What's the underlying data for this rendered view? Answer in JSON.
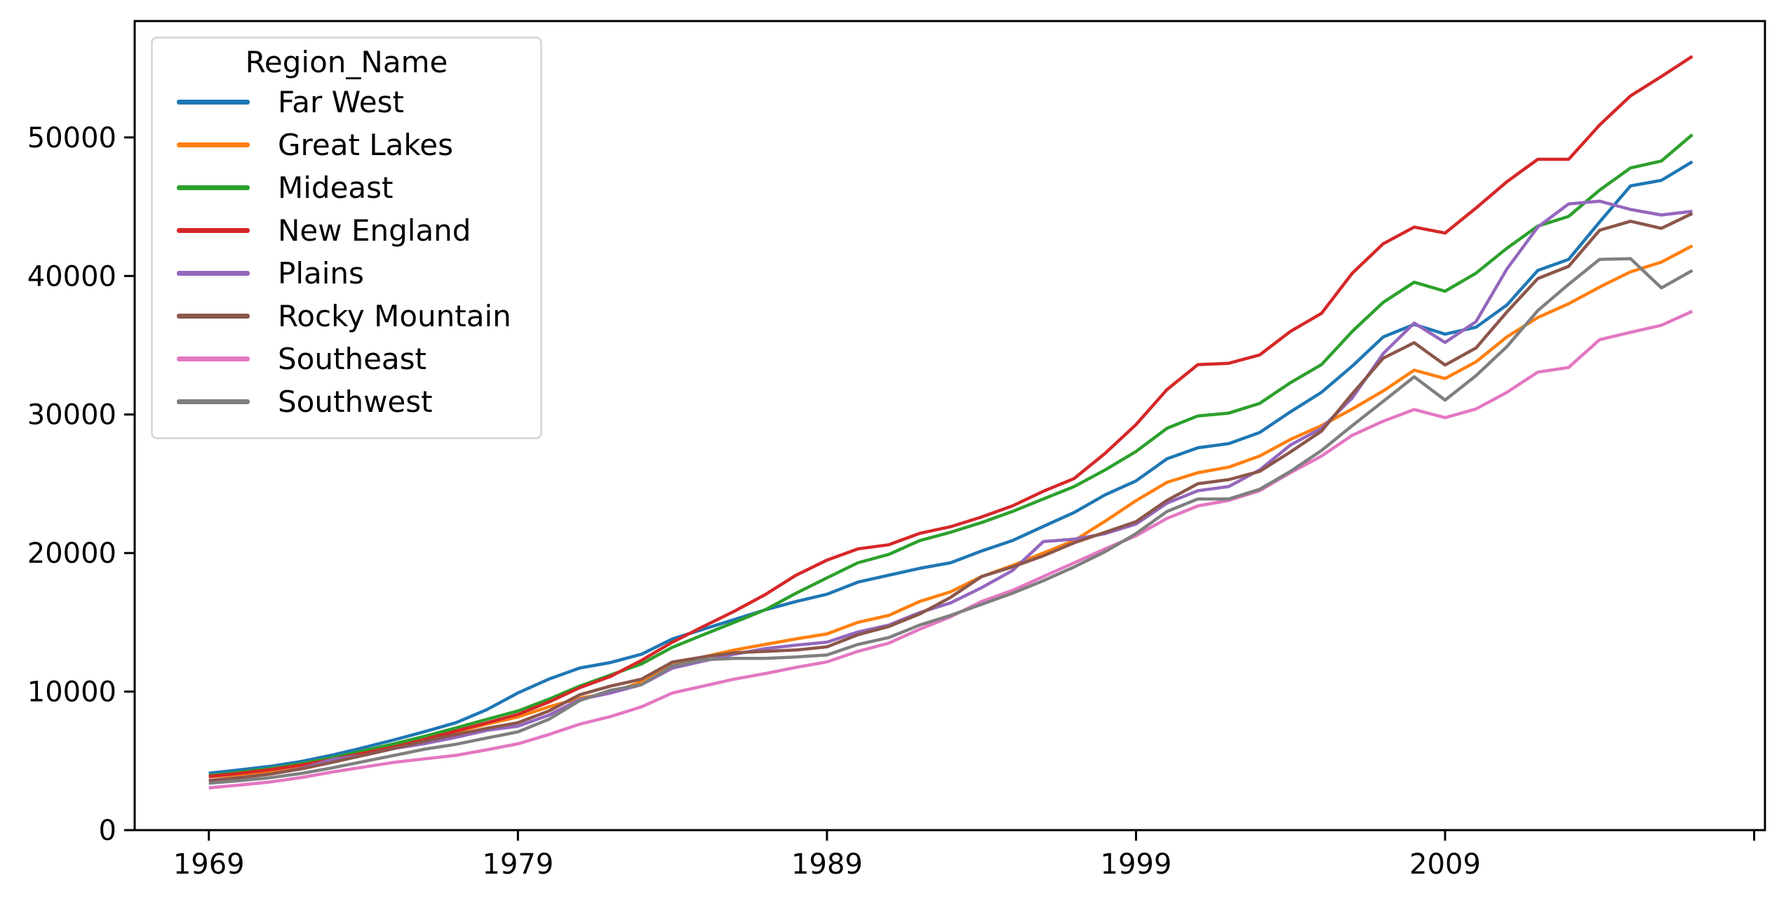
{
  "chart_data": {
    "type": "line",
    "title": "",
    "xlabel": "",
    "ylabel": "",
    "grid": false,
    "legend_position": "upper left",
    "legend_title": "Region_Name",
    "xlim": [
      1966.6,
      2019.35
    ],
    "ylim": [
      0,
      58400
    ],
    "x_ticks": [
      1969,
      1979,
      1989,
      1999,
      2009
    ],
    "x_tick_labels": [
      "1969",
      "1979",
      "1989",
      "1999",
      "2009"
    ],
    "x_extra_unlabeled_tick": 2019,
    "y_ticks": [
      0,
      10000,
      20000,
      30000,
      40000,
      50000
    ],
    "y_tick_labels": [
      "0",
      "10000",
      "20000",
      "30000",
      "40000",
      "50000"
    ],
    "x": [
      1969,
      1970,
      1971,
      1972,
      1973,
      1974,
      1975,
      1976,
      1977,
      1978,
      1979,
      1980,
      1981,
      1982,
      1983,
      1984,
      1985,
      1986,
      1987,
      1988,
      1989,
      1990,
      1991,
      1992,
      1993,
      1994,
      1995,
      1996,
      1997,
      1998,
      1999,
      2000,
      2001,
      2002,
      2003,
      2004,
      2005,
      2006,
      2007,
      2008,
      2009,
      2010,
      2011,
      2012,
      2013,
      2014,
      2015,
      2016,
      2017
    ],
    "series": [
      {
        "name": "Far West",
        "color": "#1f77b4",
        "values": [
          4110,
          4350,
          4610,
          4960,
          5420,
          5950,
          6520,
          7120,
          7760,
          8700,
          9900,
          10900,
          11700,
          12100,
          12700,
          13800,
          14500,
          15200,
          15900,
          16500,
          17030,
          17900,
          18400,
          18900,
          19300,
          20150,
          20900,
          21920,
          22930,
          24200,
          25210,
          26800,
          27600,
          27900,
          28700,
          30200,
          31600,
          33500,
          35600,
          36500,
          35800,
          36300,
          37900,
          40400,
          41200,
          43900,
          46500,
          46900,
          48250
        ]
      },
      {
        "name": "Great Lakes",
        "color": "#ff7f0e",
        "values": [
          3850,
          4000,
          4280,
          4650,
          5180,
          5650,
          6080,
          6680,
          7100,
          7650,
          8170,
          8900,
          9520,
          9900,
          10700,
          11900,
          12500,
          13000,
          13400,
          13800,
          14160,
          15000,
          15500,
          16500,
          17200,
          18300,
          19100,
          20000,
          20900,
          22300,
          23780,
          25100,
          25800,
          26200,
          27000,
          28200,
          29200,
          30400,
          31700,
          33200,
          32600,
          33800,
          35600,
          37000,
          38000,
          39200,
          40300,
          41000,
          42180
        ]
      },
      {
        "name": "Mideast",
        "color": "#2ca02c",
        "values": [
          3940,
          4180,
          4450,
          4800,
          5230,
          5720,
          6230,
          6780,
          7380,
          8000,
          8600,
          9450,
          10400,
          11200,
          12000,
          13200,
          14100,
          15000,
          15900,
          17100,
          18210,
          19300,
          19900,
          20900,
          21500,
          22200,
          23000,
          23900,
          24800,
          26000,
          27330,
          29000,
          29900,
          30100,
          30800,
          32300,
          33600,
          36000,
          38100,
          39550,
          38900,
          40200,
          42000,
          43600,
          44300,
          46200,
          47800,
          48300,
          50200
        ]
      },
      {
        "name": "New England",
        "color": "#d62728",
        "values": [
          3880,
          4100,
          4370,
          4700,
          5100,
          5550,
          6000,
          6550,
          7150,
          7750,
          8350,
          9250,
          10280,
          11100,
          12250,
          13570,
          14700,
          15800,
          17000,
          18400,
          19490,
          20300,
          20600,
          21420,
          21900,
          22600,
          23400,
          24460,
          25380,
          27200,
          29270,
          31800,
          33600,
          33700,
          34300,
          36000,
          37300,
          40200,
          42330,
          43530,
          43100,
          44900,
          46800,
          48420,
          48420,
          50900,
          53000,
          54400,
          55850
        ]
      },
      {
        "name": "Plains",
        "color": "#9467bd",
        "values": [
          3590,
          3790,
          4050,
          4450,
          5100,
          5400,
          5900,
          6250,
          6700,
          7200,
          7500,
          8300,
          9430,
          9900,
          10500,
          11700,
          12200,
          12700,
          13100,
          13350,
          13570,
          14300,
          14800,
          15700,
          16400,
          17500,
          18730,
          20830,
          21000,
          21400,
          22090,
          23600,
          24500,
          24800,
          26000,
          27800,
          29000,
          31200,
          34400,
          36600,
          35200,
          36700,
          40500,
          43530,
          45200,
          45400,
          44800,
          44400,
          44670
        ]
      },
      {
        "name": "Rocky Mountain",
        "color": "#8c564b",
        "values": [
          3560,
          3790,
          4050,
          4420,
          4900,
          5400,
          5900,
          6420,
          6900,
          7350,
          7750,
          8600,
          9770,
          10400,
          10900,
          12130,
          12500,
          12800,
          12900,
          13000,
          13230,
          14100,
          14700,
          15600,
          16800,
          18300,
          19000,
          19800,
          20740,
          21500,
          22260,
          23800,
          25000,
          25300,
          25900,
          27300,
          28800,
          31500,
          34070,
          35180,
          33570,
          34800,
          37400,
          39810,
          40700,
          43300,
          43950,
          43440,
          44510
        ]
      },
      {
        "name": "Southeast",
        "color": "#e377c2",
        "values": [
          3050,
          3250,
          3480,
          3800,
          4200,
          4550,
          4900,
          5150,
          5400,
          5800,
          6230,
          6900,
          7650,
          8200,
          8900,
          9900,
          10400,
          10900,
          11300,
          11750,
          12140,
          12900,
          13500,
          14500,
          15400,
          16500,
          17300,
          18300,
          19300,
          20300,
          21250,
          22500,
          23400,
          23800,
          24500,
          25800,
          27000,
          28500,
          29520,
          30360,
          29770,
          30400,
          31600,
          33060,
          33400,
          35400,
          35930,
          36440,
          37450
        ]
      },
      {
        "name": "Southwest",
        "color": "#7f7f7f",
        "values": [
          3390,
          3570,
          3790,
          4100,
          4500,
          4950,
          5400,
          5850,
          6200,
          6650,
          7090,
          8000,
          9350,
          10100,
          10500,
          11850,
          12300,
          12400,
          12400,
          12500,
          12640,
          13400,
          13900,
          14800,
          15500,
          16300,
          17100,
          18000,
          19000,
          20100,
          21400,
          23000,
          23900,
          23900,
          24600,
          25900,
          27400,
          29200,
          30950,
          32720,
          31040,
          32800,
          34900,
          37500,
          39400,
          41200,
          41250,
          39140,
          40400
        ]
      }
    ]
  }
}
